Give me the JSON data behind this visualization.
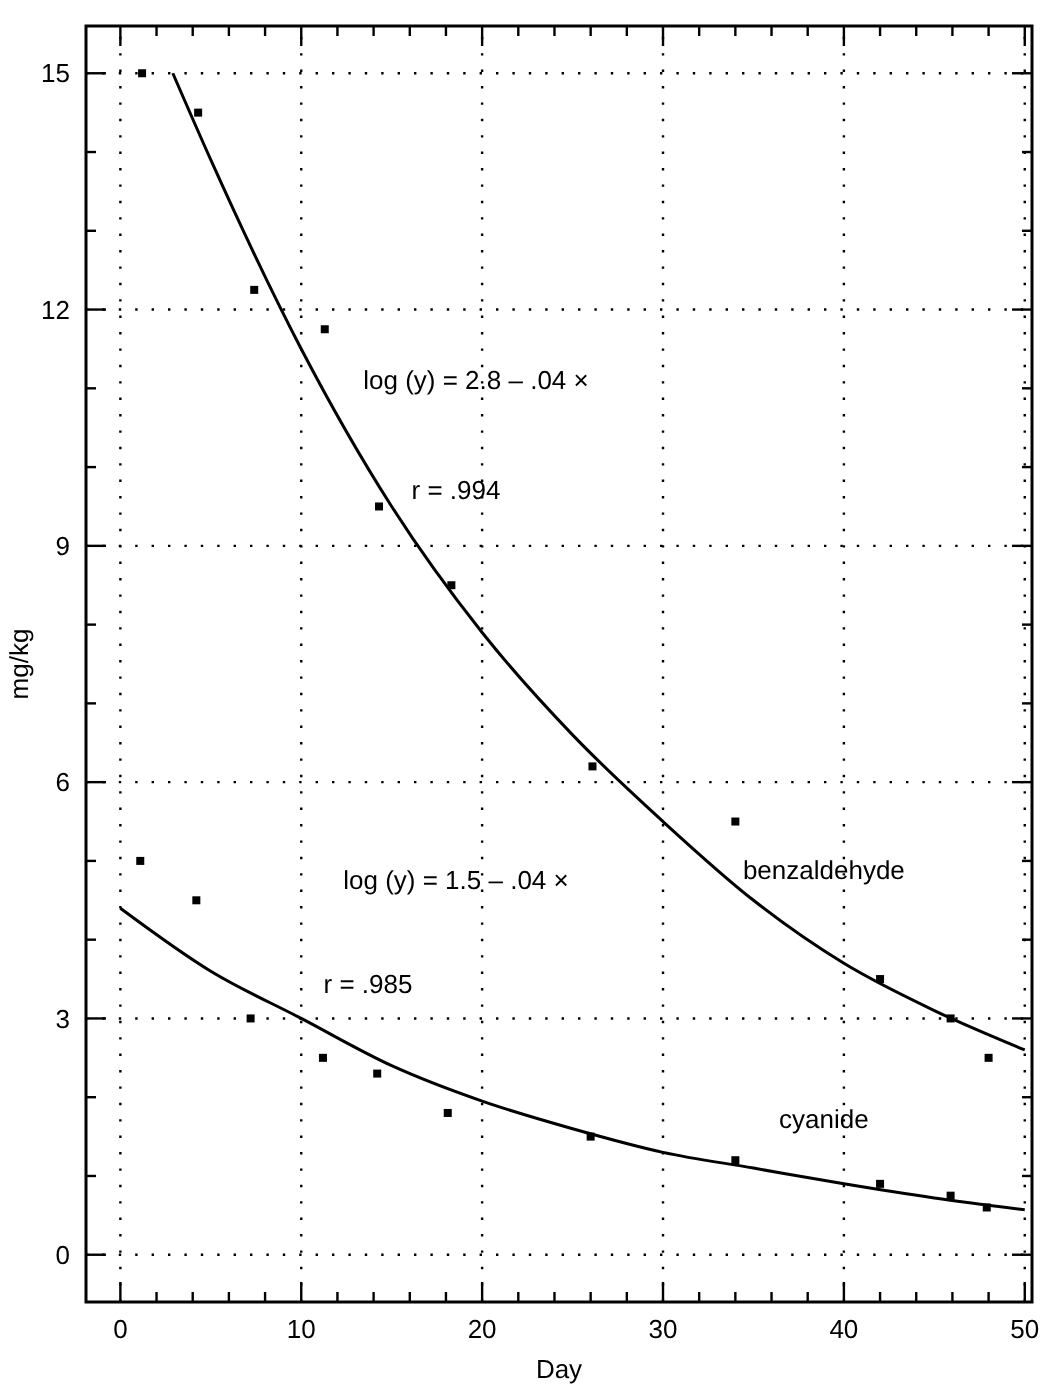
{
  "chart_data": {
    "type": "scatter",
    "xlabel": "Day",
    "ylabel": "mg/kg",
    "xlim": [
      -1.9,
      50.4
    ],
    "ylim": [
      -0.6,
      15.6
    ],
    "xticks": [
      0,
      {
        "value": 2,
        "label": null
      },
      {
        "value": 4,
        "label": null
      },
      {
        "value": 6,
        "label": null
      },
      {
        "value": 8,
        "label": null
      },
      10,
      {
        "value": 12,
        "label": null
      },
      {
        "value": 14,
        "label": null
      },
      {
        "value": 16,
        "label": null
      },
      {
        "value": 18,
        "label": null
      },
      20,
      {
        "value": 22,
        "label": null
      },
      {
        "value": 24,
        "label": null
      },
      {
        "value": 26,
        "label": null
      },
      {
        "value": 28,
        "label": null
      },
      30,
      {
        "value": 32,
        "label": null
      },
      {
        "value": 34,
        "label": null
      },
      {
        "value": 36,
        "label": null
      },
      {
        "value": 38,
        "label": null
      },
      40,
      {
        "value": 42,
        "label": null
      },
      {
        "value": 44,
        "label": null
      },
      {
        "value": 46,
        "label": null
      },
      {
        "value": 48,
        "label": null
      },
      50
    ],
    "yticks": [
      0,
      {
        "value": 1,
        "label": null
      },
      {
        "value": 2,
        "label": null
      },
      3,
      {
        "value": 4,
        "label": null
      },
      {
        "value": 5,
        "label": null
      },
      6,
      {
        "value": 7,
        "label": null
      },
      {
        "value": 8,
        "label": null
      },
      9,
      {
        "value": 10,
        "label": null
      },
      {
        "value": 11,
        "label": null
      },
      12,
      {
        "value": 13,
        "label": null
      },
      {
        "value": 14,
        "label": null
      },
      15
    ],
    "grid": true,
    "marker": "square",
    "annotations": [
      "log (y) = 2.8 – .04 ×",
      "r = .994",
      "log (y) = 1.5 – .04 ×",
      "r = .985"
    ],
    "series": [
      {
        "color": "#000000",
        "x": [
          1.2,
          4.3,
          7.4,
          11.3,
          14.3,
          18.3,
          26.1,
          34.0,
          42.0,
          45.9,
          48.0
        ],
        "values": [
          15.0,
          14.5,
          12.25,
          11.75,
          9.5,
          8.5,
          6.2,
          5.5,
          3.5,
          3.0,
          2.5
        ]
      },
      {
        "color": "#000000",
        "x": [
          1.1,
          4.2,
          7.2,
          11.2,
          14.2,
          18.1,
          26.0,
          34.0,
          42.0,
          45.9,
          47.9
        ],
        "values": [
          5.0,
          4.5,
          3.0,
          2.5,
          2.3,
          1.8,
          1.5,
          1.2,
          0.9,
          0.75,
          0.6
        ]
      },
      {
        "type": "line",
        "name": "benzaldehyde",
        "color": "#000000",
        "marker": "none",
        "x": [
          2.9,
          5,
          10,
          15,
          20,
          25,
          30,
          35,
          40,
          45,
          50
        ],
        "values": [
          15.0,
          13.9,
          11.5,
          9.5,
          7.9,
          6.6,
          5.5,
          4.5,
          3.7,
          3.1,
          2.6
        ]
      },
      {
        "type": "line",
        "name": "cyanide",
        "color": "#000000",
        "marker": "none",
        "x": [
          0,
          5,
          10,
          15,
          20,
          25,
          30,
          35,
          40,
          45,
          50
        ],
        "values": [
          4.4,
          3.6,
          3.0,
          2.4,
          1.95,
          1.6,
          1.3,
          1.1,
          0.9,
          0.72,
          0.57
        ]
      }
    ]
  }
}
